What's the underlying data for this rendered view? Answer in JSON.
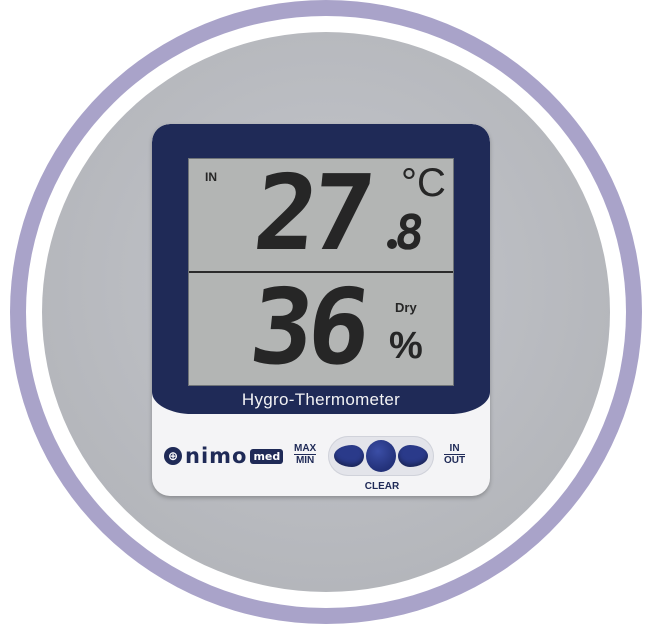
{
  "colors": {
    "ring": "#a9a3c9",
    "background_disc": "#b7b9be",
    "bezel": "#1f2a57",
    "lcd": "#b3b5b4",
    "button": "#2a3a8a"
  },
  "display": {
    "indoor_label": "IN",
    "temperature": {
      "integer": "27",
      "decimal": "8",
      "unit": "°C"
    },
    "humidity": {
      "value": "36",
      "unit": "%",
      "status": "Dry"
    }
  },
  "device": {
    "label": "Hygro-Thermometer"
  },
  "brand": {
    "icon": "nimomed-logo-icon",
    "name": "nimo",
    "suffix": "med"
  },
  "controls": {
    "maxmin": {
      "top": "MAX",
      "bottom": "MIN"
    },
    "clear": "CLEAR",
    "inout": {
      "top": "IN",
      "bottom": "OUT"
    }
  }
}
